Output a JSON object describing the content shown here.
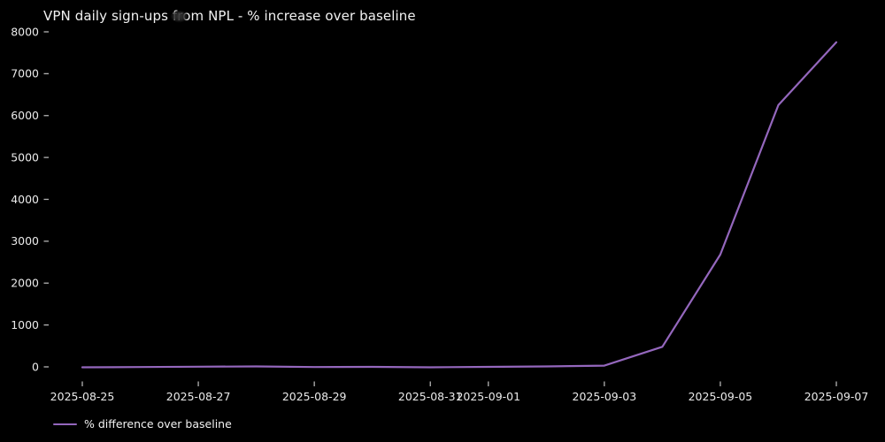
{
  "title": "VPN daily sign-ups from NPL - % increase over baseline",
  "legend": {
    "label": "% difference over baseline"
  },
  "colors": {
    "background": "#000000",
    "line": "#9467bd",
    "text": "#f2f2f2",
    "tick_mark": "#b3b3b3",
    "tick_label": "#eaeaea"
  },
  "chart_data": {
    "type": "line",
    "title": "VPN daily sign-ups from NPL - % increase over baseline",
    "xlabel": "",
    "ylabel": "",
    "grid": false,
    "legend_position": "lower-left-below-axes",
    "x": [
      "2025-08-25",
      "2025-08-26",
      "2025-08-27",
      "2025-08-28",
      "2025-08-29",
      "2025-08-30",
      "2025-08-31",
      "2025-09-01",
      "2025-09-02",
      "2025-09-03",
      "2025-09-04",
      "2025-09-05",
      "2025-09-06",
      "2025-09-07"
    ],
    "series": [
      {
        "name": "% difference over baseline",
        "values": [
          -10,
          -5,
          5,
          10,
          -5,
          0,
          -10,
          0,
          10,
          30,
          480,
          2680,
          6250,
          7750
        ]
      }
    ],
    "x_ticks": [
      "2025-08-25",
      "2025-08-27",
      "2025-08-29",
      "2025-08-31",
      "2025-09-01",
      "2025-09-03",
      "2025-09-05",
      "2025-09-07"
    ],
    "y_ticks": [
      0,
      1000,
      2000,
      3000,
      4000,
      5000,
      6000,
      7000,
      8000
    ],
    "ylim": [
      -350,
      8100
    ]
  }
}
